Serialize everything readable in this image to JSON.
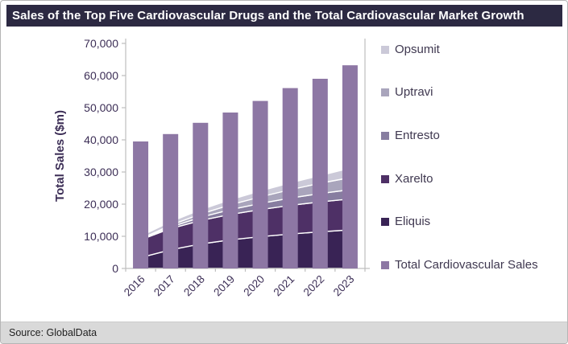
{
  "chart_data": {
    "type": "combo-bar-stacked-area",
    "title": "Sales of the Top Five Cardiovascular Drugs and the Total Cardiovascular Market Growth",
    "ylabel": "Total Sales ($m)",
    "ylim": [
      0,
      70000
    ],
    "ytick_step": 10000,
    "grid": false,
    "legend_position": "right",
    "categories": [
      2016,
      2017,
      2018,
      2019,
      2020,
      2021,
      2022,
      2023
    ],
    "bar_series": {
      "name": "Total Cardiovascular Sales",
      "color": "#8d77a4",
      "values": [
        39500,
        41800,
        45300,
        48500,
        52100,
        56100,
        59000,
        63200
      ]
    },
    "area_series": [
      {
        "name": "Eliquis",
        "color": "#392355",
        "values": [
          3400,
          5800,
          7600,
          8900,
          9900,
          10700,
          11400,
          12000
        ]
      },
      {
        "name": "Xarelto",
        "color": "#4e3066",
        "values": [
          5500,
          6600,
          7300,
          7900,
          8400,
          8900,
          9300,
          9600
        ]
      },
      {
        "name": "Entresto",
        "color": "#877da0",
        "values": [
          170,
          500,
          1000,
          1500,
          1900,
          2300,
          2600,
          2900
        ]
      },
      {
        "name": "Uptravi",
        "color": "#a9a5bc",
        "values": [
          150,
          550,
          1000,
          1500,
          2050,
          2600,
          3200,
          3750
        ]
      },
      {
        "name": "Opsumit",
        "color": "#cbc9d8",
        "values": [
          850,
          1100,
          1350,
          1600,
          1850,
          2100,
          2400,
          2950
        ]
      }
    ],
    "legend": [
      {
        "label": "Opsumit",
        "color": "#cbc9d8"
      },
      {
        "label": "Uptravi",
        "color": "#a9a5bc"
      },
      {
        "label": "Entresto",
        "color": "#877da0"
      },
      {
        "label": "Xarelto",
        "color": "#4e3066"
      },
      {
        "label": "Eliquis",
        "color": "#392355"
      },
      {
        "label": "Total Cardiovascular Sales",
        "color": "#8d77a4"
      }
    ],
    "source": "Source: GlobalData"
  },
  "colors": {
    "title_bar_bg": "#2c2942",
    "axis_text": "#3c2e56",
    "axis_line": "#bfbfbf",
    "band_outline": "#ffffff",
    "source_bar_bg": "#d9d9d9"
  }
}
